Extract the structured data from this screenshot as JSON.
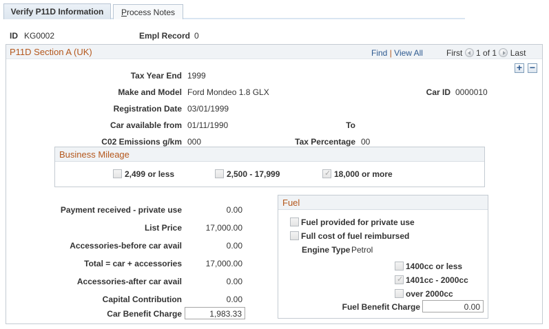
{
  "tabs": [
    {
      "label": "Verify P11D Information",
      "active": true
    },
    {
      "label": "Process Notes",
      "accesskey": "P",
      "active": false
    }
  ],
  "header": {
    "id_label": "ID",
    "id_value": "KG0002",
    "empl_record_label": "Empl Record",
    "empl_record_value": "0"
  },
  "section": {
    "title": "P11D Section A (UK)",
    "find_label": "Find",
    "separator": "|",
    "view_all_label": "View All",
    "first_label": "First",
    "page_indicator": "1 of 1",
    "last_label": "Last",
    "add_row": "+",
    "delete_row": "−"
  },
  "car": {
    "tax_year_end_label": "Tax Year End",
    "tax_year_end": "1999",
    "make_model_label": "Make and Model",
    "make_model": "Ford Mondeo 1.8 GLX",
    "car_id_label": "Car ID",
    "car_id": "0000010",
    "registration_date_label": "Registration Date",
    "registration_date": "03/01/1999",
    "available_from_label": "Car available from",
    "available_from": "01/11/1990",
    "to_label": "To",
    "to_value": "",
    "co2_label": "C02 Emissions g/km",
    "co2": "000",
    "tax_pct_label": "Tax Percentage",
    "tax_pct": "00"
  },
  "business_mileage": {
    "title": "Business Mileage",
    "options": [
      {
        "label": "2,499 or less",
        "checked": false
      },
      {
        "label": "2,500 - 17,999",
        "checked": false
      },
      {
        "label": "18,000 or more",
        "checked": true
      }
    ]
  },
  "costs": [
    {
      "label": "Payment received - private use",
      "value": "0.00"
    },
    {
      "label": "List Price",
      "value": "17,000.00"
    },
    {
      "label": "Accessories-before car avail",
      "value": "0.00"
    },
    {
      "label": "Total = car + accessories",
      "value": "17,000.00"
    },
    {
      "label": "Accessories-after car avail",
      "value": "0.00"
    },
    {
      "label": "Capital Contribution",
      "value": "0.00"
    }
  ],
  "car_benefit": {
    "label": "Car Benefit Charge",
    "value": "1,983.33"
  },
  "fuel": {
    "title": "Fuel",
    "provided_label": "Fuel provided for private use",
    "provided": false,
    "reimbursed_label": "Full cost of fuel reimbursed",
    "reimbursed": false,
    "engine_type_label": "Engine Type",
    "engine_type": "Petrol",
    "engine_sizes": [
      {
        "label": "1400cc or less",
        "checked": false
      },
      {
        "label": "1401cc - 2000cc",
        "checked": true
      },
      {
        "label": "over 2000cc",
        "checked": false
      }
    ],
    "benefit_label": "Fuel Benefit Charge",
    "benefit_value": "0.00"
  }
}
